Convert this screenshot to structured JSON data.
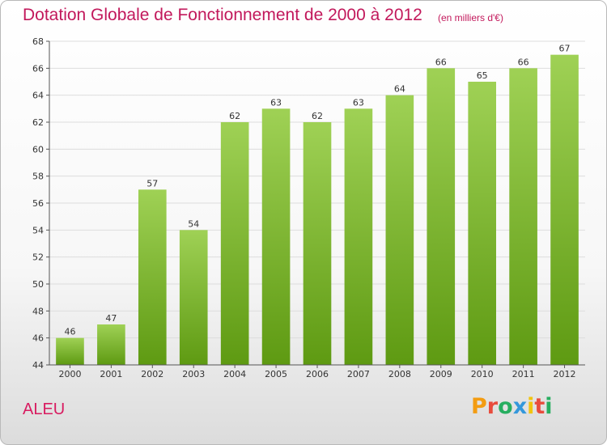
{
  "header": {
    "title": "Dotation Globale de Fonctionnement de 2000 à 2012",
    "subtitle": "(en milliers d'€)"
  },
  "footer": {
    "commune": "ALEU",
    "logo_letters": [
      "P",
      "r",
      "o",
      "x",
      "i",
      "t",
      "i"
    ],
    "logo_colors": [
      "#f39c12",
      "#e84c3d",
      "#27ae60",
      "#3498db",
      "#f1c40f",
      "#e84c3d",
      "#27ae60"
    ]
  },
  "colors": {
    "bar_light": "#9fd155",
    "bar_dark": "#5e9a12",
    "grid": "#dddddd",
    "title": "#c2185b"
  },
  "chart_data": {
    "type": "bar",
    "categories": [
      "2000",
      "2001",
      "2002",
      "2003",
      "2004",
      "2005",
      "2006",
      "2007",
      "2008",
      "2009",
      "2010",
      "2011",
      "2012"
    ],
    "values": [
      46,
      47,
      57,
      54,
      62,
      63,
      62,
      63,
      64,
      66,
      65,
      66,
      67
    ],
    "ylim": [
      44,
      68
    ],
    "yticks": [
      44,
      46,
      48,
      50,
      52,
      54,
      56,
      58,
      60,
      62,
      64,
      66,
      68
    ],
    "grid": true,
    "xlabel": "",
    "ylabel": ""
  }
}
